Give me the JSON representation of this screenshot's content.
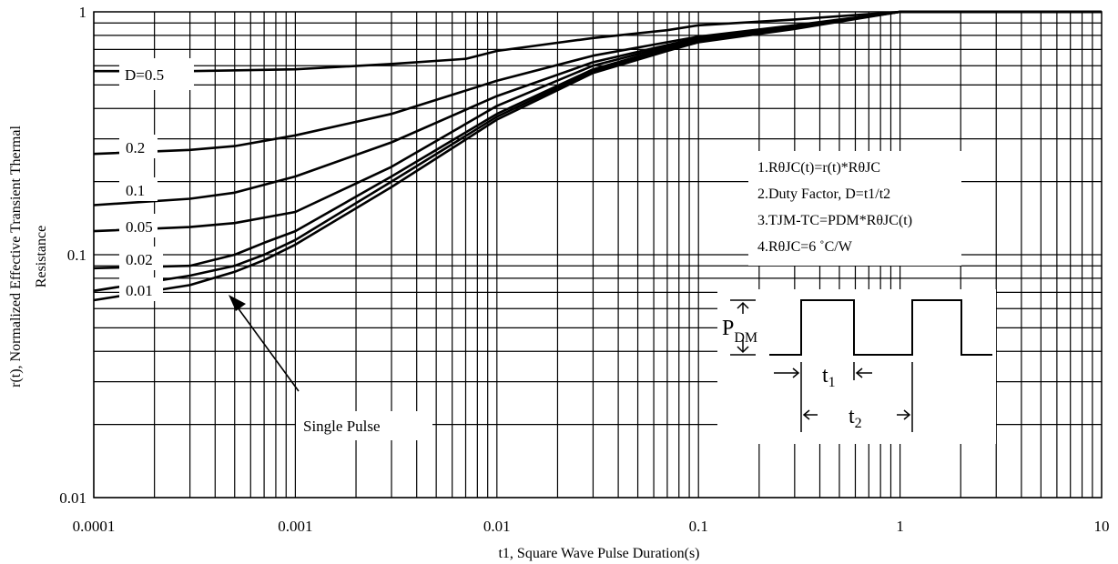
{
  "chart_data": {
    "type": "line",
    "title": "",
    "xlabel": "t1, Square Wave Pulse Duration(s)",
    "ylabel_lines": [
      "r(t), Normalized Effective Transient Thermal",
      "Resistance"
    ],
    "xscale": "log",
    "yscale": "log",
    "xlim": [
      0.0001,
      10
    ],
    "ylim": [
      0.01,
      1
    ],
    "x_ticks": [
      {
        "value": 0.0001,
        "label": "0.0001"
      },
      {
        "value": 0.001,
        "label": "0.001"
      },
      {
        "value": 0.01,
        "label": "0.01"
      },
      {
        "value": 0.1,
        "label": "0.1"
      },
      {
        "value": 1,
        "label": "1"
      },
      {
        "value": 10,
        "label": "10"
      }
    ],
    "y_ticks": [
      {
        "value": 0.01,
        "label": "0.01"
      },
      {
        "value": 0.1,
        "label": "0.1"
      },
      {
        "value": 1,
        "label": "1"
      }
    ],
    "grid": true,
    "series": [
      {
        "name": "D=0.5",
        "x": [
          0.0001,
          0.0003,
          0.001,
          0.003,
          0.007,
          0.01,
          0.03,
          0.07,
          0.1,
          0.3,
          1,
          3,
          10
        ],
        "y": [
          0.57,
          0.57,
          0.58,
          0.61,
          0.64,
          0.69,
          0.78,
          0.84,
          0.88,
          0.93,
          1.0,
          1.0,
          1.0
        ]
      },
      {
        "name": "0.2",
        "x": [
          0.0001,
          0.0003,
          0.0005,
          0.001,
          0.003,
          0.01,
          0.03,
          0.07,
          0.1,
          0.3,
          1,
          3,
          10
        ],
        "y": [
          0.26,
          0.27,
          0.28,
          0.31,
          0.38,
          0.52,
          0.66,
          0.75,
          0.79,
          0.88,
          1.0,
          1.0,
          1.0
        ]
      },
      {
        "name": "0.1",
        "x": [
          0.0001,
          0.0003,
          0.0005,
          0.001,
          0.003,
          0.01,
          0.03,
          0.07,
          0.1,
          0.3,
          1,
          3,
          10
        ],
        "y": [
          0.16,
          0.17,
          0.18,
          0.21,
          0.29,
          0.45,
          0.62,
          0.73,
          0.78,
          0.87,
          1.0,
          1.0,
          1.0
        ]
      },
      {
        "name": "0.05",
        "x": [
          0.0001,
          0.0003,
          0.0005,
          0.001,
          0.003,
          0.01,
          0.03,
          0.07,
          0.1,
          0.3,
          1,
          3,
          10
        ],
        "y": [
          0.125,
          0.13,
          0.135,
          0.15,
          0.23,
          0.41,
          0.6,
          0.72,
          0.77,
          0.87,
          1.0,
          1.0,
          1.0
        ]
      },
      {
        "name": "0.02",
        "x": [
          0.0001,
          0.0003,
          0.0005,
          0.0007,
          0.001,
          0.003,
          0.01,
          0.03,
          0.07,
          0.1,
          0.3,
          1,
          3,
          10
        ],
        "y": [
          0.088,
          0.09,
          0.1,
          0.112,
          0.125,
          0.21,
          0.38,
          0.58,
          0.71,
          0.76,
          0.86,
          1.0,
          1.0,
          1.0
        ]
      },
      {
        "name": "0.01",
        "x": [
          0.0001,
          0.0003,
          0.0005,
          0.0007,
          0.001,
          0.003,
          0.01,
          0.03,
          0.07,
          0.1,
          0.3,
          1,
          3,
          10
        ],
        "y": [
          0.071,
          0.082,
          0.09,
          0.1,
          0.115,
          0.2,
          0.37,
          0.57,
          0.7,
          0.76,
          0.86,
          1.0,
          1.0,
          1.0
        ]
      },
      {
        "name": "Single Pulse",
        "x": [
          0.0001,
          0.0003,
          0.0005,
          0.0007,
          0.001,
          0.003,
          0.01,
          0.03,
          0.07,
          0.1,
          0.3,
          1,
          3,
          10
        ],
        "y": [
          0.065,
          0.075,
          0.085,
          0.095,
          0.11,
          0.19,
          0.36,
          0.56,
          0.69,
          0.75,
          0.85,
          1.0,
          1.0,
          1.0
        ]
      }
    ],
    "curve_labels": [
      "D=0.5",
      "0.2",
      "0.1",
      "0.05",
      "0.02",
      "0.01"
    ],
    "annotation": "Single Pulse",
    "notes": [
      "1.RθJC(t)=r(t)*RθJC",
      "2.Duty Factor, D=t1/t2",
      "3.TJM-TC=PDM*RθJC(t)",
      "4.RθJC=6 ˚C/W"
    ],
    "inset": {
      "pdm_label": "P",
      "pdm_sub": "DM",
      "t1_label": "t",
      "t1_sub": "1",
      "t2_label": "t",
      "t2_sub": "2"
    }
  }
}
